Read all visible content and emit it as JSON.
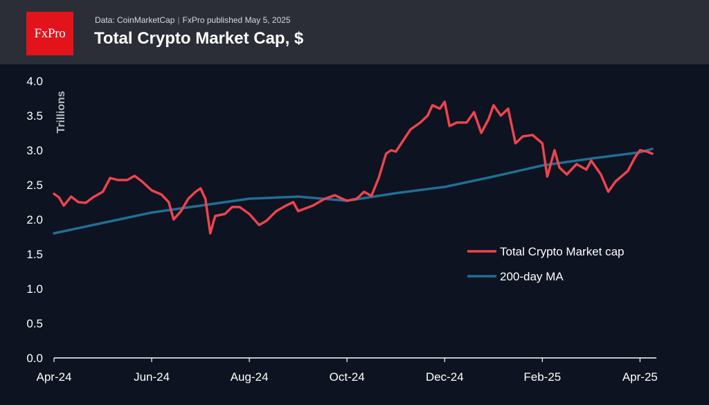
{
  "header": {
    "logo_text": "FxPro",
    "source_text": "Data: CoinMarketCap",
    "published_text": "FxPro published May 5, 2025",
    "title": "Total Crypto Market Cap, $"
  },
  "colors": {
    "background": "#0d1320",
    "header": "#2b2e36",
    "logo": "#e3131b",
    "market_cap": "#f0434f",
    "ma": "#1f6f96"
  },
  "chart_data": {
    "type": "line",
    "ylabel": "Trillions",
    "ylim": [
      0,
      4.0
    ],
    "yticks": [
      "0.0",
      "0.5",
      "1.0",
      "1.5",
      "2.0",
      "2.5",
      "3.0",
      "3.5",
      "4.0"
    ],
    "xticks": [
      "Apr-24",
      "Jun-24",
      "Aug-24",
      "Oct-24",
      "Dec-24",
      "Feb-25",
      "Apr-25"
    ],
    "grid": false,
    "legend_position": "right",
    "series": [
      {
        "name": "Total Crypto Market cap",
        "color": "#f0434f",
        "points": [
          [
            "Apr-24",
            2.37
          ],
          [
            "Apr-24 +0.1",
            2.32
          ],
          [
            "Apr-24 +0.2",
            2.2
          ],
          [
            "Apr-24 +0.35",
            2.33
          ],
          [
            "Apr-24 +0.5",
            2.25
          ],
          [
            "Apr-24 +0.65",
            2.24
          ],
          [
            "Apr-24 +0.8",
            2.32
          ],
          [
            "May-24",
            2.4
          ],
          [
            "May-24 +0.15",
            2.6
          ],
          [
            "May-24 +0.3",
            2.57
          ],
          [
            "May-24 +0.5",
            2.57
          ],
          [
            "May-24 +0.65",
            2.63
          ],
          [
            "May-24 +0.8",
            2.55
          ],
          [
            "Jun-24",
            2.42
          ],
          [
            "Jun-24 +0.2",
            2.36
          ],
          [
            "Jun-24 +0.35",
            2.25
          ],
          [
            "Jun-24 +0.45",
            2.0
          ],
          [
            "Jun-24 +0.6",
            2.12
          ],
          [
            "Jun-24 +0.75",
            2.3
          ],
          [
            "Jun-24 +0.9",
            2.4
          ],
          [
            "Jul-24",
            2.45
          ],
          [
            "Jul-24 +0.1",
            2.3
          ],
          [
            "Jul-24 +0.2",
            1.8
          ],
          [
            "Jul-24 +0.3",
            2.05
          ],
          [
            "Jul-24 +0.5",
            2.08
          ],
          [
            "Jul-24 +0.65",
            2.18
          ],
          [
            "Jul-24 +0.8",
            2.18
          ],
          [
            "Aug-24",
            2.08
          ],
          [
            "Aug-24 +0.2",
            1.92
          ],
          [
            "Aug-24 +0.35",
            1.98
          ],
          [
            "Aug-24 +0.55",
            2.12
          ],
          [
            "Aug-24 +0.75",
            2.2
          ],
          [
            "Aug-24 +0.9",
            2.25
          ],
          [
            "Sep-24",
            2.12
          ],
          [
            "Sep-24 +0.3",
            2.2
          ],
          [
            "Sep-24 +0.55",
            2.3
          ],
          [
            "Sep-24 +0.75",
            2.35
          ],
          [
            "Sep-24 +0.9",
            2.3
          ],
          [
            "Oct-24",
            2.27
          ],
          [
            "Oct-24 +0.2",
            2.3
          ],
          [
            "Oct-24 +0.35",
            2.4
          ],
          [
            "Oct-24 +0.5",
            2.34
          ],
          [
            "Oct-24 +0.65",
            2.6
          ],
          [
            "Oct-24 +0.8",
            2.95
          ],
          [
            "Oct-24 +0.9",
            3.0
          ],
          [
            "Nov-24",
            2.98
          ],
          [
            "Nov-24 +0.3",
            3.3
          ],
          [
            "Nov-24 +0.5",
            3.4
          ],
          [
            "Nov-24 +0.65",
            3.5
          ],
          [
            "Nov-24 +0.75",
            3.65
          ],
          [
            "Nov-24 +0.9",
            3.6
          ],
          [
            "Dec-24",
            3.7
          ],
          [
            "Dec-24 +0.1",
            3.35
          ],
          [
            "Dec-24 +0.25",
            3.4
          ],
          [
            "Dec-24 +0.45",
            3.4
          ],
          [
            "Dec-24 +0.6",
            3.55
          ],
          [
            "Dec-24 +0.75",
            3.25
          ],
          [
            "Dec-24 +0.9",
            3.45
          ],
          [
            "Jan-25",
            3.65
          ],
          [
            "Jan-25 +0.15",
            3.5
          ],
          [
            "Jan-25 +0.3",
            3.6
          ],
          [
            "Jan-25 +0.45",
            3.1
          ],
          [
            "Jan-25 +0.6",
            3.2
          ],
          [
            "Jan-25 +0.8",
            3.22
          ],
          [
            "Feb-25",
            3.1
          ],
          [
            "Feb-25 +0.1",
            2.62
          ],
          [
            "Feb-25 +0.25",
            3.0
          ],
          [
            "Feb-25 +0.35",
            2.75
          ],
          [
            "Feb-25 +0.5",
            2.65
          ],
          [
            "Feb-25 +0.7",
            2.8
          ],
          [
            "Feb-25 +0.9",
            2.72
          ],
          [
            "Mar-25",
            2.85
          ],
          [
            "Mar-25 +0.2",
            2.65
          ],
          [
            "Mar-25 +0.35",
            2.4
          ],
          [
            "Mar-25 +0.5",
            2.55
          ],
          [
            "Mar-25 +0.75",
            2.7
          ],
          [
            "Mar-25 +0.9",
            2.9
          ],
          [
            "Apr-25",
            3.0
          ],
          [
            "Apr-25 +0.15",
            2.98
          ],
          [
            "Apr-25 +0.25",
            2.95
          ]
        ]
      },
      {
        "name": "200-day MA",
        "color": "#1f6f96",
        "points": [
          [
            "Apr-24",
            1.8
          ],
          [
            "May-24",
            1.95
          ],
          [
            "Jun-24",
            2.1
          ],
          [
            "Jul-24",
            2.2
          ],
          [
            "Aug-24",
            2.3
          ],
          [
            "Sep-24",
            2.33
          ],
          [
            "Oct-24",
            2.27
          ],
          [
            "Nov-24",
            2.38
          ],
          [
            "Dec-24",
            2.47
          ],
          [
            "Jan-25",
            2.62
          ],
          [
            "Feb-25",
            2.78
          ],
          [
            "Mar-25",
            2.88
          ],
          [
            "Apr-25",
            2.97
          ],
          [
            "Apr-25 +0.25",
            3.02
          ]
        ]
      }
    ]
  }
}
